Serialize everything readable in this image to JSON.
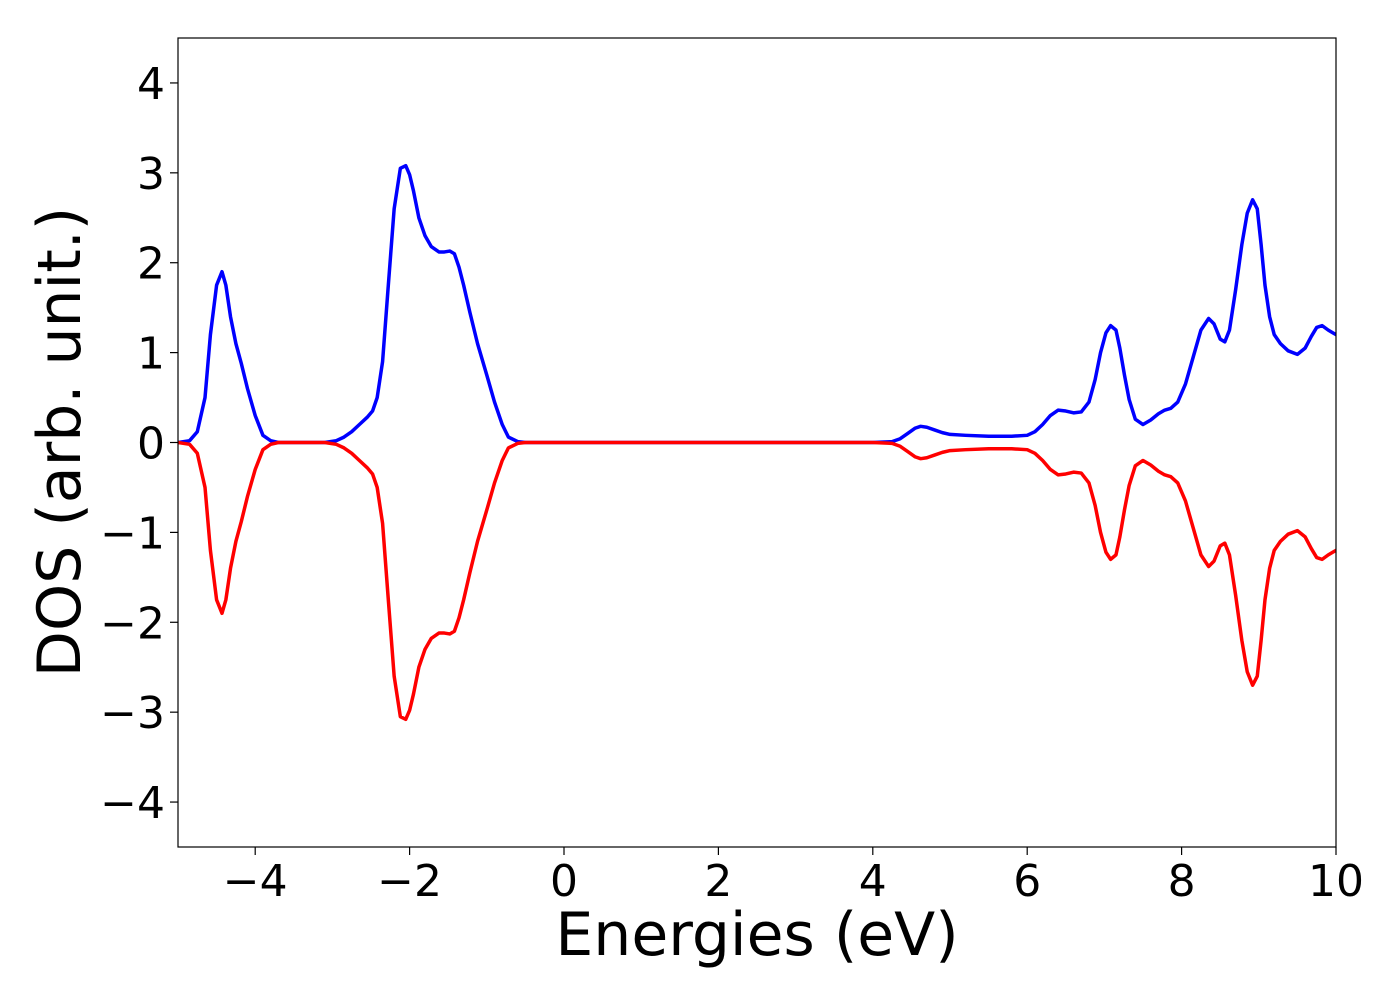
{
  "chart_data": {
    "type": "line",
    "xlabel": "Energies (eV)",
    "ylabel": "DOS (arb. unit.)",
    "xlim": [
      -5,
      10
    ],
    "ylim": [
      -4.5,
      4.5
    ],
    "grid": false,
    "x_ticks": [
      {
        "value": -4,
        "label": "−4"
      },
      {
        "value": -2,
        "label": "−2"
      },
      {
        "value": 0,
        "label": "0"
      },
      {
        "value": 2,
        "label": "2"
      },
      {
        "value": 4,
        "label": "4"
      },
      {
        "value": 6,
        "label": "6"
      },
      {
        "value": 8,
        "label": "8"
      },
      {
        "value": 10,
        "label": "10"
      }
    ],
    "y_ticks": [
      {
        "value": 4,
        "label": "4"
      },
      {
        "value": 3,
        "label": "3"
      },
      {
        "value": 2,
        "label": "2"
      },
      {
        "value": 1,
        "label": "1"
      },
      {
        "value": 0,
        "label": "0"
      },
      {
        "value": -1,
        "label": "−1"
      },
      {
        "value": -2,
        "label": "−2"
      },
      {
        "value": -3,
        "label": "−3"
      },
      {
        "value": -4,
        "label": "−4"
      }
    ],
    "series": [
      {
        "color": "#0000ff",
        "x": [
          -5.0,
          -4.85,
          -4.75,
          -4.65,
          -4.58,
          -4.5,
          -4.43,
          -4.38,
          -4.32,
          -4.25,
          -4.18,
          -4.1,
          -4.0,
          -3.9,
          -3.8,
          -3.7,
          -3.6,
          -3.5,
          -3.3,
          -3.1,
          -2.95,
          -2.85,
          -2.75,
          -2.65,
          -2.55,
          -2.48,
          -2.42,
          -2.35,
          -2.28,
          -2.2,
          -2.12,
          -2.05,
          -2.0,
          -1.95,
          -1.88,
          -1.8,
          -1.72,
          -1.62,
          -1.55,
          -1.48,
          -1.42,
          -1.36,
          -1.3,
          -1.22,
          -1.12,
          -1.0,
          -0.9,
          -0.8,
          -0.72,
          -0.6,
          -0.5,
          0.0,
          1.0,
          2.0,
          3.0,
          4.0,
          4.25,
          4.35,
          4.45,
          4.55,
          4.62,
          4.7,
          4.8,
          4.9,
          5.0,
          5.2,
          5.5,
          5.8,
          6.0,
          6.1,
          6.2,
          6.3,
          6.4,
          6.5,
          6.6,
          6.7,
          6.8,
          6.88,
          6.95,
          7.02,
          7.08,
          7.15,
          7.2,
          7.26,
          7.32,
          7.4,
          7.5,
          7.6,
          7.7,
          7.78,
          7.86,
          7.95,
          8.05,
          8.15,
          8.25,
          8.35,
          8.42,
          8.5,
          8.56,
          8.62,
          8.7,
          8.78,
          8.85,
          8.92,
          8.98,
          9.03,
          9.08,
          9.14,
          9.2,
          9.28,
          9.38,
          9.5,
          9.6,
          9.68,
          9.75,
          9.82,
          9.9,
          9.96,
          10.0
        ],
        "y": [
          0.0,
          0.02,
          0.12,
          0.5,
          1.2,
          1.75,
          1.9,
          1.75,
          1.4,
          1.1,
          0.88,
          0.6,
          0.3,
          0.08,
          0.02,
          0.0,
          0.0,
          0.0,
          0.0,
          0.0,
          0.02,
          0.06,
          0.12,
          0.2,
          0.28,
          0.35,
          0.5,
          0.9,
          1.7,
          2.6,
          3.05,
          3.08,
          2.98,
          2.8,
          2.5,
          2.3,
          2.18,
          2.12,
          2.12,
          2.13,
          2.1,
          1.95,
          1.75,
          1.45,
          1.1,
          0.75,
          0.45,
          0.2,
          0.06,
          0.01,
          0.0,
          0.0,
          0.0,
          0.0,
          0.0,
          0.0,
          0.01,
          0.04,
          0.1,
          0.16,
          0.18,
          0.17,
          0.14,
          0.11,
          0.09,
          0.08,
          0.07,
          0.07,
          0.08,
          0.12,
          0.2,
          0.3,
          0.36,
          0.35,
          0.33,
          0.34,
          0.45,
          0.7,
          1.0,
          1.22,
          1.3,
          1.25,
          1.05,
          0.75,
          0.48,
          0.26,
          0.2,
          0.25,
          0.32,
          0.36,
          0.38,
          0.45,
          0.65,
          0.95,
          1.25,
          1.38,
          1.32,
          1.15,
          1.12,
          1.25,
          1.7,
          2.2,
          2.55,
          2.7,
          2.6,
          2.2,
          1.75,
          1.4,
          1.2,
          1.1,
          1.02,
          0.98,
          1.05,
          1.18,
          1.28,
          1.3,
          1.25,
          1.22,
          1.2
        ]
      },
      {
        "color": "#ff0000",
        "x": [
          -5.0,
          -4.85,
          -4.75,
          -4.65,
          -4.58,
          -4.5,
          -4.43,
          -4.38,
          -4.32,
          -4.25,
          -4.18,
          -4.1,
          -4.0,
          -3.9,
          -3.8,
          -3.7,
          -3.6,
          -3.5,
          -3.3,
          -3.1,
          -2.95,
          -2.85,
          -2.75,
          -2.65,
          -2.55,
          -2.48,
          -2.42,
          -2.35,
          -2.28,
          -2.2,
          -2.12,
          -2.05,
          -2.0,
          -1.95,
          -1.88,
          -1.8,
          -1.72,
          -1.62,
          -1.55,
          -1.48,
          -1.42,
          -1.36,
          -1.3,
          -1.22,
          -1.12,
          -1.0,
          -0.9,
          -0.8,
          -0.72,
          -0.6,
          -0.5,
          0.0,
          1.0,
          2.0,
          3.0,
          4.0,
          4.25,
          4.35,
          4.45,
          4.55,
          4.62,
          4.7,
          4.8,
          4.9,
          5.0,
          5.2,
          5.5,
          5.8,
          6.0,
          6.1,
          6.2,
          6.3,
          6.4,
          6.5,
          6.6,
          6.7,
          6.8,
          6.88,
          6.95,
          7.02,
          7.08,
          7.15,
          7.2,
          7.26,
          7.32,
          7.4,
          7.5,
          7.6,
          7.7,
          7.78,
          7.86,
          7.95,
          8.05,
          8.15,
          8.25,
          8.35,
          8.42,
          8.5,
          8.56,
          8.62,
          8.7,
          8.78,
          8.85,
          8.92,
          8.98,
          9.03,
          9.08,
          9.14,
          9.2,
          9.28,
          9.38,
          9.5,
          9.6,
          9.68,
          9.75,
          9.82,
          9.9,
          9.96,
          10.0
        ],
        "y": [
          0.0,
          -0.02,
          -0.12,
          -0.5,
          -1.2,
          -1.75,
          -1.9,
          -1.75,
          -1.4,
          -1.1,
          -0.88,
          -0.6,
          -0.3,
          -0.08,
          -0.02,
          0.0,
          0.0,
          0.0,
          0.0,
          0.0,
          -0.02,
          -0.06,
          -0.12,
          -0.2,
          -0.28,
          -0.35,
          -0.5,
          -0.9,
          -1.7,
          -2.6,
          -3.05,
          -3.08,
          -2.98,
          -2.8,
          -2.5,
          -2.3,
          -2.18,
          -2.12,
          -2.12,
          -2.13,
          -2.1,
          -1.95,
          -1.75,
          -1.45,
          -1.1,
          -0.75,
          -0.45,
          -0.2,
          -0.06,
          -0.01,
          0.0,
          0.0,
          0.0,
          0.0,
          0.0,
          0.0,
          -0.01,
          -0.04,
          -0.1,
          -0.16,
          -0.18,
          -0.17,
          -0.14,
          -0.11,
          -0.09,
          -0.08,
          -0.07,
          -0.07,
          -0.08,
          -0.12,
          -0.2,
          -0.3,
          -0.36,
          -0.35,
          -0.33,
          -0.34,
          -0.45,
          -0.7,
          -1.0,
          -1.22,
          -1.3,
          -1.25,
          -1.05,
          -0.75,
          -0.48,
          -0.26,
          -0.2,
          -0.25,
          -0.32,
          -0.36,
          -0.38,
          -0.45,
          -0.65,
          -0.95,
          -1.25,
          -1.38,
          -1.32,
          -1.15,
          -1.12,
          -1.25,
          -1.7,
          -2.2,
          -2.55,
          -2.7,
          -2.6,
          -2.2,
          -1.75,
          -1.4,
          -1.2,
          -1.1,
          -1.02,
          -0.98,
          -1.05,
          -1.18,
          -1.28,
          -1.3,
          -1.25,
          -1.22,
          -1.2
        ]
      }
    ]
  }
}
